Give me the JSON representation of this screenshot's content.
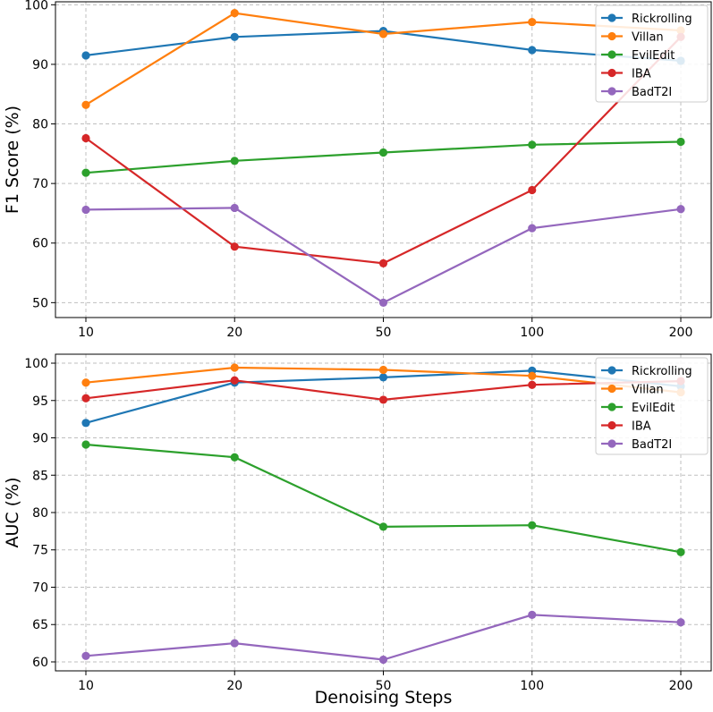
{
  "chart_data": [
    {
      "type": "line",
      "categories": [
        "10",
        "20",
        "50",
        "100",
        "200"
      ],
      "xlabel": "",
      "ylabel": "F1 Score (%)",
      "ylim": [
        47.5,
        100.5
      ],
      "yticks": [
        50,
        60,
        70,
        80,
        90,
        100
      ],
      "grid": true,
      "legend_position": "top-right",
      "series": [
        {
          "name": "Rickrolling",
          "color": "#1f77b4",
          "values": [
            91.5,
            94.6,
            95.6,
            92.4,
            90.6
          ]
        },
        {
          "name": "Villan",
          "color": "#ff7f0e",
          "values": [
            83.2,
            98.6,
            95.1,
            97.1,
            95.7
          ]
        },
        {
          "name": "EvilEdit",
          "color": "#2ca02c",
          "values": [
            71.8,
            73.8,
            75.2,
            76.5,
            77.0
          ]
        },
        {
          "name": "IBA",
          "color": "#d62728",
          "values": [
            77.6,
            59.4,
            56.6,
            68.9,
            94.6
          ]
        },
        {
          "name": "BadT2I",
          "color": "#9467bd",
          "values": [
            65.6,
            65.9,
            50.0,
            62.5,
            65.7
          ]
        }
      ]
    },
    {
      "type": "line",
      "categories": [
        "10",
        "20",
        "50",
        "100",
        "200"
      ],
      "xlabel": "Denoising Steps",
      "ylabel": "AUC (%)",
      "ylim": [
        58.8,
        101.2
      ],
      "yticks": [
        60,
        65,
        70,
        75,
        80,
        85,
        90,
        95,
        100
      ],
      "grid": true,
      "legend_position": "top-right",
      "series": [
        {
          "name": "Rickrolling",
          "color": "#1f77b4",
          "values": [
            92.0,
            97.4,
            98.1,
            99.0,
            96.9
          ]
        },
        {
          "name": "Villan",
          "color": "#ff7f0e",
          "values": [
            97.4,
            99.4,
            99.1,
            98.3,
            96.1
          ]
        },
        {
          "name": "EvilEdit",
          "color": "#2ca02c",
          "values": [
            89.1,
            87.4,
            78.1,
            78.3,
            74.7
          ]
        },
        {
          "name": "IBA",
          "color": "#d62728",
          "values": [
            95.3,
            97.7,
            95.1,
            97.1,
            97.6
          ]
        },
        {
          "name": "BadT2I",
          "color": "#9467bd",
          "values": [
            60.8,
            62.5,
            60.3,
            66.3,
            65.3
          ]
        }
      ]
    }
  ]
}
